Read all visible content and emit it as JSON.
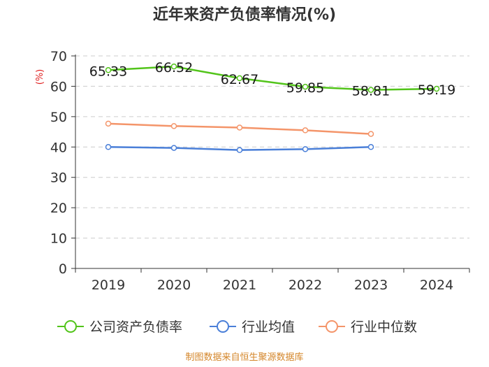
{
  "chart_data": {
    "type": "line",
    "title": "近年来资产负债率情况(%)",
    "ylabel": "(%)",
    "xlabel": "",
    "ylim": [
      0,
      70
    ],
    "yticks": [
      0,
      10,
      20,
      30,
      40,
      50,
      60,
      70
    ],
    "categories": [
      "2019",
      "2020",
      "2021",
      "2022",
      "2023",
      "2024"
    ],
    "grid": true,
    "legend_position": "bottom",
    "series": [
      {
        "name": "公司资产负债率",
        "color": "#52c41a",
        "values": [
          65.33,
          66.52,
          62.67,
          59.85,
          58.81,
          59.19
        ],
        "labels": [
          "65.33",
          "66.52",
          "62.67",
          "59.85",
          "58.81",
          "59.19"
        ]
      },
      {
        "name": "行业均值",
        "color": "#4a7fd8",
        "values": [
          40.0,
          39.7,
          39.0,
          39.3,
          40.0,
          null
        ]
      },
      {
        "name": "行业中位数",
        "color": "#f4956a",
        "values": [
          47.7,
          46.9,
          46.4,
          45.5,
          44.3,
          null
        ]
      }
    ],
    "source": "制图数据来自恒生聚源数据库"
  }
}
